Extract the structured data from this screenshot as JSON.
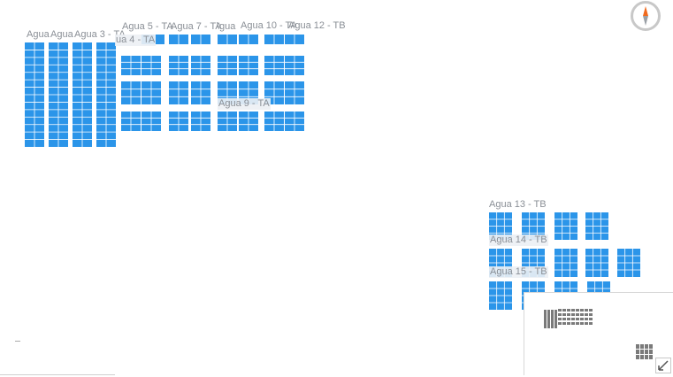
{
  "map": {
    "panel_color": "#2b95e9",
    "grid_line_color": "#ffffff",
    "label_color": "#8a8f96",
    "overview_panel_color": "#7a7a7a",
    "compass_north_color": "#f06a1e",
    "compass_south_color": "#9aa0a6"
  },
  "labels": [
    {
      "id": "agua-1",
      "text": "Agua"
    },
    {
      "id": "agua-2",
      "text": "Agua"
    },
    {
      "id": "agua-3",
      "text": "Agua 3 - TA"
    },
    {
      "id": "agua-4",
      "text": "ua 4 - TA"
    },
    {
      "id": "agua-5",
      "text": "Agua 5 - TA"
    },
    {
      "id": "agua-7",
      "text": "Agua 7 - TA"
    },
    {
      "id": "agua-8",
      "text": "\\gua"
    },
    {
      "id": "agua-10",
      "text": "Agua 10 - TA"
    },
    {
      "id": "agua-12",
      "text": "Agua 12 - TB"
    },
    {
      "id": "agua-9",
      "text": "Agua 9 - TA"
    },
    {
      "id": "agua-13",
      "text": "Agua 13 - TB"
    },
    {
      "id": "agua-14",
      "text": "Agua 14 - TB"
    },
    {
      "id": "agua-15",
      "text": "Agua 15 - TB"
    }
  ],
  "controls": {
    "compass_icon": "compass-icon",
    "overview_icon": "expand-overview-icon"
  }
}
